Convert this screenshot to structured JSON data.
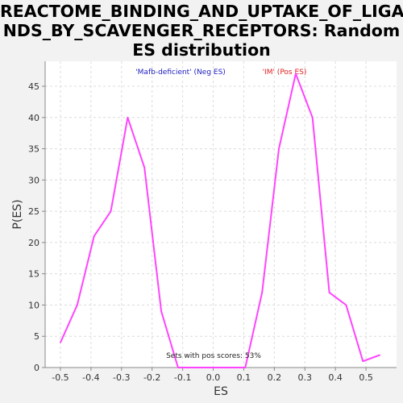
{
  "chart_data": {
    "type": "line",
    "title": "REACTOME_BINDING_AND_UPTAKE_OF_LIGANDS_BY_SCAVENGER_RECEPTORS: Random ES distribution",
    "title_lines": [
      "REACTOME_BINDING_AND_UPTAKE_OF_LIGA",
      "NDS_BY_SCAVENGER_RECEPTORS: Random",
      "ES distribution"
    ],
    "xlabel": "ES",
    "ylabel": "P(ES)",
    "xlim": [
      -0.55,
      0.6
    ],
    "ylim": [
      0,
      49
    ],
    "x_ticks": [
      -0.5,
      -0.4,
      -0.3,
      -0.2,
      -0.1,
      0.0,
      0.1,
      0.2,
      0.3,
      0.4,
      0.5
    ],
    "x_tick_labels": [
      "-0.5",
      "-0.4",
      "-0.3",
      "-0.2",
      "-0.1",
      "0.0",
      "0.1",
      "0.2",
      "0.3",
      "0.4",
      "0.5"
    ],
    "y_ticks": [
      0,
      5,
      10,
      15,
      20,
      25,
      30,
      35,
      40,
      45
    ],
    "y_tick_labels": [
      "0",
      "5",
      "10",
      "15",
      "20",
      "25",
      "30",
      "35",
      "40",
      "45"
    ],
    "grid": true,
    "series": [
      {
        "color": "#ff44ff",
        "x": [
          -0.5,
          -0.445,
          -0.39,
          -0.335,
          -0.28,
          -0.225,
          -0.17,
          -0.115,
          -0.06,
          -0.005,
          0.05,
          0.105,
          0.16,
          0.215,
          0.27,
          0.325,
          0.38,
          0.435,
          0.49,
          0.545
        ],
        "y": [
          4,
          10,
          21,
          25,
          40,
          32,
          9,
          0,
          0,
          0,
          0,
          0,
          12,
          35,
          47,
          40,
          12,
          10,
          1,
          2
        ]
      }
    ],
    "legend": [
      {
        "label": "'Mafb-deficient' (Neg ES)",
        "color": "#2020c0"
      },
      {
        "label": "'IM' (Pos ES)",
        "color": "#e02020"
      }
    ],
    "annotation": "Sets with pos scores: 53%"
  }
}
